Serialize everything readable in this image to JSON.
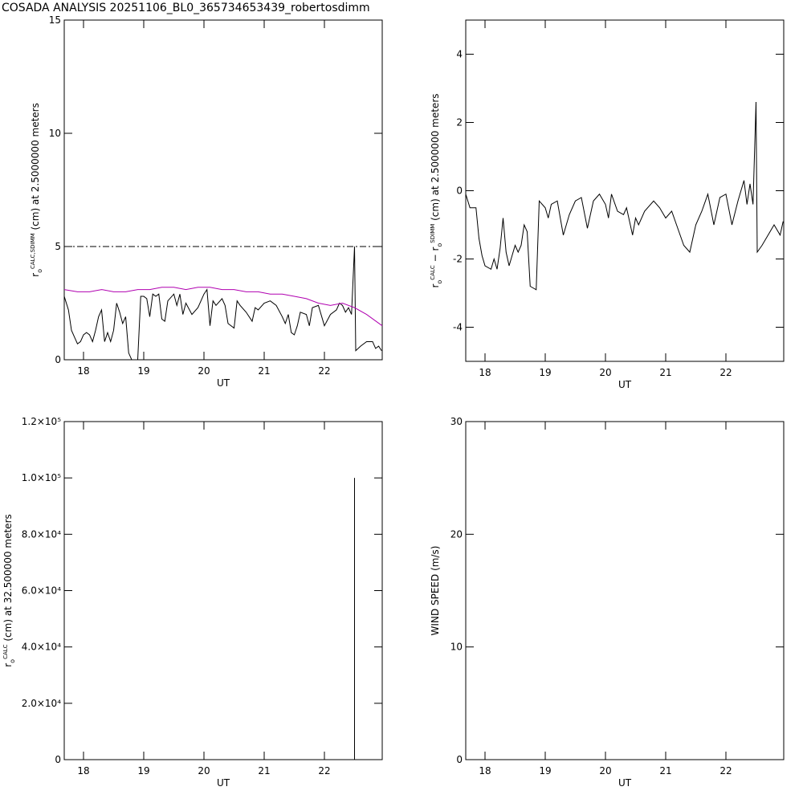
{
  "title": "COSADA ANALYSIS 20251106_BL0_365734653439_robertosdimm",
  "chart_data": [
    {
      "type": "line",
      "xlabel": "UT",
      "ylabel": [
        {
          "text": "r",
          "pos": "base"
        },
        {
          "text": "o",
          "pos": "sub"
        },
        {
          "text": "CALC,SDIMM",
          "pos": "sup"
        },
        {
          "text": " (cm)  at  2.5000000 meters",
          "pos": "base"
        }
      ],
      "xlim": [
        17.68,
        22.96
      ],
      "xticks": [
        18,
        19,
        20,
        21,
        22
      ],
      "ylim": [
        0,
        15
      ],
      "yticks": [
        0,
        5,
        10,
        15
      ],
      "hlines": [
        {
          "value": 5,
          "color": "#000000",
          "dash": "dashdot"
        }
      ],
      "series": [
        {
          "color": "#000000",
          "x": [
            17.68,
            17.75,
            17.8,
            17.85,
            17.9,
            17.95,
            18.0,
            18.05,
            18.1,
            18.15,
            18.2,
            18.25,
            18.3,
            18.35,
            18.4,
            18.45,
            18.5,
            18.55,
            18.6,
            18.65,
            18.7,
            18.75,
            18.8,
            18.85,
            18.9,
            18.95,
            19.0,
            19.05,
            19.1,
            19.15,
            19.2,
            19.25,
            19.3,
            19.35,
            19.4,
            19.5,
            19.55,
            19.6,
            19.65,
            19.7,
            19.8,
            19.9,
            20.0,
            20.05,
            20.1,
            20.15,
            20.2,
            20.3,
            20.35,
            20.4,
            20.5,
            20.55,
            20.6,
            20.7,
            20.8,
            20.85,
            20.9,
            21.0,
            21.1,
            21.2,
            21.3,
            21.35,
            21.4,
            21.45,
            21.5,
            21.55,
            21.6,
            21.7,
            21.75,
            21.8,
            21.9,
            22.0,
            22.1,
            22.2,
            22.25,
            22.3,
            22.35,
            22.4,
            22.45,
            22.5,
            22.52,
            22.6,
            22.7,
            22.8,
            22.85,
            22.9,
            22.95
          ],
          "values": [
            2.8,
            2.2,
            1.3,
            1.0,
            0.7,
            0.8,
            1.1,
            1.2,
            1.1,
            0.8,
            1.3,
            1.9,
            2.2,
            0.8,
            1.2,
            0.8,
            1.3,
            2.5,
            2.1,
            1.6,
            1.9,
            0.3,
            0.0,
            0.0,
            0.0,
            2.8,
            2.8,
            2.7,
            1.9,
            2.9,
            2.8,
            2.9,
            1.8,
            1.7,
            2.6,
            2.9,
            2.4,
            2.9,
            2.0,
            2.5,
            2.0,
            2.3,
            2.9,
            3.1,
            1.5,
            2.6,
            2.4,
            2.7,
            2.4,
            1.6,
            1.4,
            2.6,
            2.4,
            2.1,
            1.7,
            2.3,
            2.2,
            2.5,
            2.6,
            2.4,
            1.9,
            1.6,
            2.0,
            1.2,
            1.1,
            1.5,
            2.1,
            2.0,
            1.5,
            2.3,
            2.4,
            1.5,
            2.0,
            2.2,
            2.5,
            2.4,
            2.1,
            2.3,
            2.0,
            5.0,
            0.4,
            0.6,
            0.8,
            0.8,
            0.5,
            0.6,
            0.4
          ]
        },
        {
          "color": "#b000b0",
          "x": [
            17.68,
            17.9,
            18.1,
            18.3,
            18.5,
            18.7,
            18.9,
            19.1,
            19.3,
            19.5,
            19.7,
            19.9,
            20.1,
            20.3,
            20.5,
            20.7,
            20.9,
            21.1,
            21.3,
            21.5,
            21.7,
            21.9,
            22.1,
            22.3,
            22.5,
            22.7,
            22.96
          ],
          "values": [
            3.1,
            3.0,
            3.0,
            3.1,
            3.0,
            3.0,
            3.1,
            3.1,
            3.2,
            3.2,
            3.1,
            3.2,
            3.2,
            3.1,
            3.1,
            3.0,
            3.0,
            2.9,
            2.9,
            2.8,
            2.7,
            2.5,
            2.4,
            2.5,
            2.3,
            2.0,
            1.5
          ]
        }
      ]
    },
    {
      "type": "line",
      "xlabel": "UT",
      "ylabel": [
        {
          "text": "r",
          "pos": "base"
        },
        {
          "text": "o",
          "pos": "sub"
        },
        {
          "text": "CALC",
          "pos": "sup"
        },
        {
          "text": "  − r",
          "pos": "base"
        },
        {
          "text": "o",
          "pos": "sub"
        },
        {
          "text": "SDIMM",
          "pos": "sup"
        },
        {
          "text": " (cm) at 2.5000000 meters",
          "pos": "base"
        }
      ],
      "xlim": [
        17.68,
        22.96
      ],
      "xticks": [
        18,
        19,
        20,
        21,
        22
      ],
      "ylim": [
        -5,
        5
      ],
      "yticks": [
        -4,
        -2,
        0,
        2,
        4
      ],
      "series": [
        {
          "color": "#000000",
          "x": [
            17.68,
            17.75,
            17.85,
            17.9,
            17.95,
            18.0,
            18.1,
            18.15,
            18.2,
            18.25,
            18.3,
            18.35,
            18.4,
            18.5,
            18.55,
            18.6,
            18.65,
            18.7,
            18.75,
            18.85,
            18.9,
            19.0,
            19.05,
            19.1,
            19.2,
            19.3,
            19.4,
            19.5,
            19.6,
            19.7,
            19.8,
            19.9,
            20.0,
            20.05,
            20.1,
            20.2,
            20.3,
            20.35,
            20.45,
            20.5,
            20.55,
            20.65,
            20.8,
            20.9,
            21.0,
            21.1,
            21.2,
            21.3,
            21.4,
            21.45,
            21.5,
            21.6,
            21.7,
            21.8,
            21.9,
            22.0,
            22.1,
            22.2,
            22.3,
            22.35,
            22.4,
            22.45,
            22.5,
            22.52,
            22.6,
            22.7,
            22.8,
            22.9,
            22.95
          ],
          "values": [
            -0.1,
            -0.5,
            -0.5,
            -1.4,
            -1.9,
            -2.2,
            -2.3,
            -2.0,
            -2.3,
            -1.7,
            -0.8,
            -1.8,
            -2.2,
            -1.6,
            -1.8,
            -1.6,
            -1.0,
            -1.2,
            -2.8,
            -2.9,
            -0.3,
            -0.5,
            -0.8,
            -0.4,
            -0.3,
            -1.3,
            -0.7,
            -0.3,
            -0.2,
            -1.1,
            -0.3,
            -0.1,
            -0.4,
            -0.8,
            -0.1,
            -0.6,
            -0.7,
            -0.5,
            -1.3,
            -0.8,
            -1.0,
            -0.6,
            -0.3,
            -0.5,
            -0.8,
            -0.6,
            -1.1,
            -1.6,
            -1.8,
            -1.4,
            -1.0,
            -0.6,
            -0.1,
            -1.0,
            -0.2,
            -0.1,
            -1.0,
            -0.3,
            0.3,
            -0.4,
            0.2,
            -0.4,
            2.6,
            -1.8,
            -1.6,
            -1.3,
            -1.0,
            -1.3,
            -0.9
          ]
        }
      ]
    },
    {
      "type": "line",
      "xlabel": "UT",
      "ylabel": [
        {
          "text": "r",
          "pos": "base"
        },
        {
          "text": "o",
          "pos": "sub"
        },
        {
          "text": "CALC",
          "pos": "sup"
        },
        {
          "text": " (cm) at 32.500000 meters",
          "pos": "base"
        }
      ],
      "xlim": [
        17.68,
        22.96
      ],
      "xticks": [
        18,
        19,
        20,
        21,
        22
      ],
      "ylim": [
        0,
        120000
      ],
      "yticks": [
        0,
        {
          "value": 20000,
          "label": "2.0×10⁴"
        },
        {
          "value": 40000,
          "label": "4.0×10⁴"
        },
        {
          "value": 60000,
          "label": "6.0×10⁴"
        },
        {
          "value": 80000,
          "label": "8.0×10⁴"
        },
        {
          "value": 100000,
          "label": "1.0×10⁵"
        },
        {
          "value": 120000,
          "label": "1.2×10⁵"
        }
      ],
      "series": [
        {
          "color": "#000000",
          "x": [
            22.5,
            22.5
          ],
          "values": [
            0,
            100000
          ]
        }
      ]
    },
    {
      "type": "line",
      "xlabel": "UT",
      "ylabel": [
        {
          "text": "WIND SPEED (m/s)",
          "pos": "base"
        }
      ],
      "xlim": [
        17.68,
        22.96
      ],
      "xticks": [
        18,
        19,
        20,
        21,
        22
      ],
      "ylim": [
        0,
        30
      ],
      "yticks": [
        0,
        10,
        20,
        30
      ],
      "series": []
    }
  ]
}
